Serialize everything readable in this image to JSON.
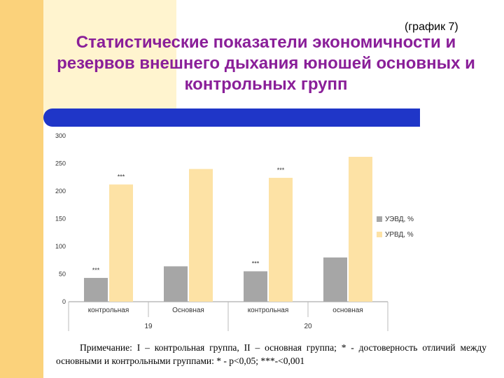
{
  "header": {
    "graph_ref": "(график 7)",
    "title": "Статистические показатели экономичности и резервов внешнего дыхания юношей основных и контрольных групп"
  },
  "colors": {
    "side_band": "#fbd27b",
    "side_pale": "#fff4cf",
    "accent_bar": "#1f36c8",
    "title": "#8a1f99",
    "series_1": "#a6a6a6",
    "series_2": "#fde2a5"
  },
  "note": "Примечание: I – контрольная группа, II – основная группа; * - достоверность отличий между основными и контрольными группами: * - p<0,05; ***-<0,001",
  "chart_data": {
    "type": "bar",
    "title": "",
    "xlabel": "",
    "ylabel": "",
    "ylim": [
      0,
      300
    ],
    "yticks": [
      "0",
      "50",
      "100",
      "150",
      "200",
      "250",
      "300"
    ],
    "categories": [
      "контрольная",
      "Основная",
      "контрольная",
      "основная"
    ],
    "groups": [
      "19",
      "20"
    ],
    "series": [
      {
        "name": "УЭВД, %",
        "values": [
          43,
          64,
          55,
          80
        ],
        "markers": [
          "***",
          "",
          "***",
          ""
        ]
      },
      {
        "name": "УРВД, %",
        "values": [
          212,
          240,
          224,
          262
        ],
        "markers": [
          "***",
          "",
          "***",
          ""
        ]
      }
    ],
    "legend_position": "right",
    "grid": false
  }
}
